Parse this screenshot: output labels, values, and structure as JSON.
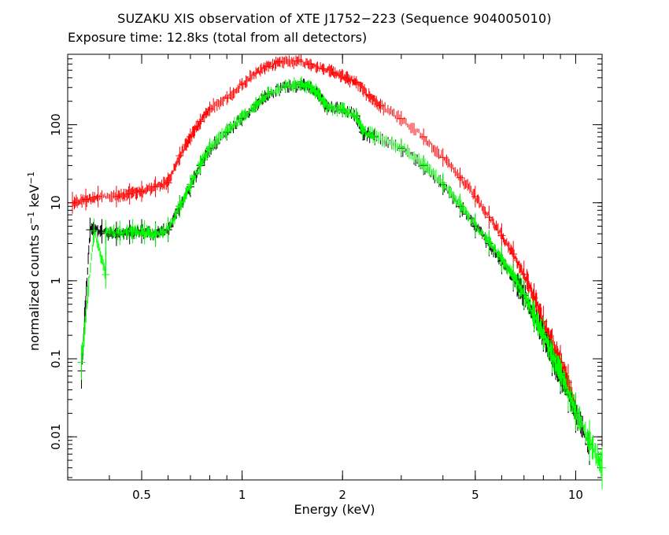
{
  "chart_data": {
    "type": "scatter",
    "title": "SUZAKU XIS observation of XTE J1752−223 (Sequence 904005010)",
    "subtitle": "Exposure time: 12.8ks (total from all detectors)",
    "xlabel": "Energy (keV)",
    "ylabel": {
      "prefix": "normalized counts s",
      "exp1": "−1",
      "mid": " keV",
      "exp2": "−1"
    },
    "x_scale": "log",
    "y_scale": "log",
    "xlim": [
      0.3,
      12
    ],
    "ylim": [
      0.0028,
      800
    ],
    "x_ticks": [
      {
        "value": 0.5,
        "label": "0.5"
      },
      {
        "value": 1,
        "label": "1"
      },
      {
        "value": 2,
        "label": "2"
      },
      {
        "value": 5,
        "label": "5"
      },
      {
        "value": 10,
        "label": "10"
      }
    ],
    "y_ticks": [
      {
        "value": 0.01,
        "label": "0.01"
      },
      {
        "value": 0.1,
        "label": "0.1"
      },
      {
        "value": 1,
        "label": "1"
      },
      {
        "value": 10,
        "label": "10"
      },
      {
        "value": 100,
        "label": "100"
      }
    ],
    "series": [
      {
        "color": "#ff0000",
        "points": [
          [
            0.31,
            10
          ],
          [
            0.34,
            11
          ],
          [
            0.37,
            12
          ],
          [
            0.42,
            12
          ],
          [
            0.46,
            13
          ],
          [
            0.5,
            14
          ],
          [
            0.55,
            16
          ],
          [
            0.6,
            18
          ],
          [
            0.65,
            40
          ],
          [
            0.7,
            70
          ],
          [
            0.75,
            110
          ],
          [
            0.8,
            160
          ],
          [
            0.9,
            220
          ],
          [
            1.0,
            330
          ],
          [
            1.1,
            460
          ],
          [
            1.2,
            560
          ],
          [
            1.3,
            640
          ],
          [
            1.45,
            660
          ],
          [
            1.6,
            600
          ],
          [
            1.75,
            520
          ],
          [
            1.9,
            460
          ],
          [
            2.05,
            400
          ],
          [
            2.2,
            350
          ],
          [
            2.4,
            240
          ],
          [
            2.6,
            175
          ],
          [
            3.0,
            120
          ],
          [
            3.5,
            70
          ],
          [
            4.0,
            38
          ],
          [
            4.5,
            21
          ],
          [
            5.0,
            12
          ],
          [
            5.5,
            6.5
          ],
          [
            6.0,
            3.8
          ],
          [
            6.5,
            2.2
          ],
          [
            7.0,
            1.2
          ],
          [
            7.5,
            0.6
          ],
          [
            8.0,
            0.3
          ],
          [
            8.5,
            0.15
          ],
          [
            9.0,
            0.09
          ],
          [
            9.5,
            0.05
          ],
          [
            10.0,
            0.02
          ]
        ]
      },
      {
        "color": "#000000",
        "points": [
          [
            0.33,
            0.07
          ],
          [
            0.35,
            4.5
          ],
          [
            0.38,
            4.3
          ],
          [
            0.42,
            4.0
          ],
          [
            0.46,
            4.2
          ],
          [
            0.5,
            4.3
          ],
          [
            0.55,
            4.0
          ],
          [
            0.6,
            4.5
          ],
          [
            0.65,
            9
          ],
          [
            0.7,
            16
          ],
          [
            0.75,
            30
          ],
          [
            0.8,
            50
          ],
          [
            0.9,
            80
          ],
          [
            1.0,
            120
          ],
          [
            1.1,
            180
          ],
          [
            1.2,
            250
          ],
          [
            1.35,
            310
          ],
          [
            1.5,
            330
          ],
          [
            1.6,
            300
          ],
          [
            1.7,
            240
          ],
          [
            1.8,
            165
          ],
          [
            2.0,
            155
          ],
          [
            2.2,
            130
          ],
          [
            2.3,
            80
          ],
          [
            2.5,
            70
          ],
          [
            3.0,
            50
          ],
          [
            3.5,
            30
          ],
          [
            4.0,
            17
          ],
          [
            4.5,
            9
          ],
          [
            5.0,
            5
          ],
          [
            5.5,
            3
          ],
          [
            6.0,
            1.8
          ],
          [
            6.5,
            1.1
          ],
          [
            7.0,
            0.65
          ],
          [
            7.5,
            0.35
          ],
          [
            8.0,
            0.2
          ],
          [
            8.5,
            0.1
          ],
          [
            9.0,
            0.06
          ],
          [
            9.5,
            0.035
          ],
          [
            10.0,
            0.02
          ],
          [
            11.0,
            0.008
          ]
        ]
      },
      {
        "color": "#00ff00",
        "points": [
          [
            0.33,
            0.09
          ],
          [
            0.39,
            1.2
          ],
          [
            0.36,
            4.4
          ],
          [
            0.39,
            4.2
          ],
          [
            0.43,
            4.1
          ],
          [
            0.47,
            4.3
          ],
          [
            0.51,
            4.2
          ],
          [
            0.55,
            3.9
          ],
          [
            0.6,
            4.6
          ],
          [
            0.65,
            9
          ],
          [
            0.7,
            17
          ],
          [
            0.75,
            31
          ],
          [
            0.8,
            52
          ],
          [
            0.9,
            82
          ],
          [
            1.0,
            125
          ],
          [
            1.1,
            185
          ],
          [
            1.2,
            255
          ],
          [
            1.35,
            315
          ],
          [
            1.5,
            335
          ],
          [
            1.6,
            305
          ],
          [
            1.7,
            245
          ],
          [
            1.8,
            168
          ],
          [
            2.0,
            158
          ],
          [
            2.2,
            132
          ],
          [
            2.3,
            82
          ],
          [
            2.5,
            72
          ],
          [
            3.0,
            52
          ],
          [
            3.5,
            31
          ],
          [
            4.0,
            18
          ],
          [
            4.5,
            9.5
          ],
          [
            5.0,
            5.2
          ],
          [
            5.5,
            3.1
          ],
          [
            6.0,
            1.9
          ],
          [
            6.5,
            1.15
          ],
          [
            7.0,
            0.68
          ],
          [
            7.5,
            0.36
          ],
          [
            8.0,
            0.21
          ],
          [
            8.5,
            0.11
          ],
          [
            9.0,
            0.065
          ],
          [
            9.5,
            0.037
          ],
          [
            10.0,
            0.021
          ],
          [
            11.0,
            0.009
          ],
          [
            12.0,
            0.004
          ]
        ]
      }
    ]
  }
}
